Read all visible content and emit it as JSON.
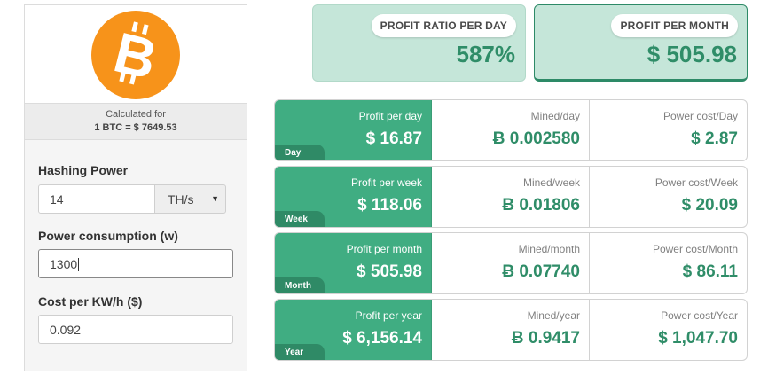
{
  "sidebar": {
    "calculated_for": "Calculated for",
    "btc_rate": "1 BTC = $ 7649.53",
    "hashing_power_label": "Hashing Power",
    "hashing_power_value": "14",
    "hashing_unit": "TH/s",
    "power_consumption_label": "Power consumption (w)",
    "power_consumption_value": "1300",
    "cost_label": "Cost per KW/h ($)",
    "cost_value": "0.092"
  },
  "stats": {
    "profit_ratio_label": "PROFIT RATIO PER DAY",
    "profit_ratio_value": "587%",
    "profit_month_label": "PROFIT PER MONTH",
    "profit_month_value": "$ 505.98"
  },
  "rows": [
    {
      "tag": "Day",
      "profit_label": "Profit per day",
      "profit_value": "$ 16.87",
      "mined_label": "Mined/day",
      "mined_value": "Ƀ 0.002580",
      "power_label": "Power cost/Day",
      "power_value": "$ 2.87"
    },
    {
      "tag": "Week",
      "profit_label": "Profit per week",
      "profit_value": "$ 118.06",
      "mined_label": "Mined/week",
      "mined_value": "Ƀ 0.01806",
      "power_label": "Power cost/Week",
      "power_value": "$ 20.09"
    },
    {
      "tag": "Month",
      "profit_label": "Profit per month",
      "profit_value": "$ 505.98",
      "mined_label": "Mined/month",
      "mined_value": "Ƀ 0.07740",
      "power_label": "Power cost/Month",
      "power_value": "$ 86.11"
    },
    {
      "tag": "Year",
      "profit_label": "Profit per year",
      "profit_value": "$ 6,156.14",
      "mined_label": "Mined/year",
      "mined_value": "Ƀ 0.9417",
      "power_label": "Power cost/Year",
      "power_value": "$ 1,047.70"
    }
  ],
  "colors": {
    "bitcoin_orange": "#f7931a",
    "accent_green": "#40ad82",
    "dark_green": "#2f8a66",
    "light_green": "#c5e6d9"
  },
  "icons": {
    "logo": "bitcoin-logo-icon",
    "select_caret": "caret-down-icon"
  }
}
